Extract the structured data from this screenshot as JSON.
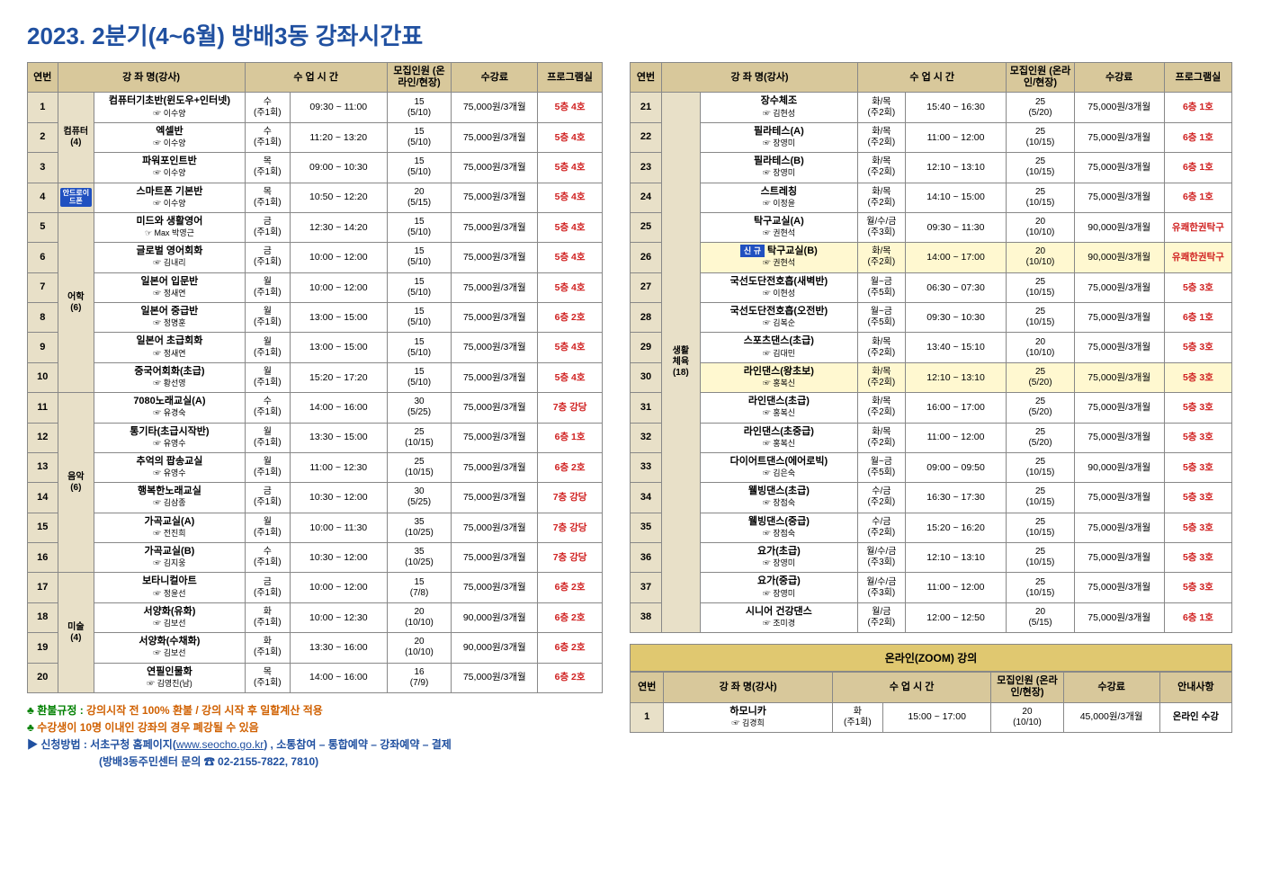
{
  "title": "2023. 2분기(4~6월) 방배3동 강좌시간표",
  "headers": [
    "연번",
    "강 좌 명(강사)",
    "수 업 시 간",
    "모집인원 (온라인/현장)",
    "수강료",
    "프로그램실"
  ],
  "left_rows": [
    {
      "n": "1",
      "cat": "컴퓨터 (4)",
      "cat_span": 3,
      "badge": "",
      "name": "컴퓨터기초반(윈도우+인터넷)",
      "teacher": "☞ 이수양",
      "day": "수",
      "per": "(주1회)",
      "time": "09:30 ~ 11:00",
      "cap": "15",
      "capd": "(5/10)",
      "fee": "75,000원/3개월",
      "room": "5층 4호",
      "rc": "r"
    },
    {
      "n": "2",
      "name": "엑셀반",
      "teacher": "☞ 이수양",
      "day": "수",
      "per": "(주1회)",
      "time": "11:20 ~ 13:20",
      "cap": "15",
      "capd": "(5/10)",
      "fee": "75,000원/3개월",
      "room": "5층 4호",
      "rc": "r"
    },
    {
      "n": "3",
      "name": "파워포인트반",
      "teacher": "☞ 이수양",
      "day": "목",
      "per": "(주1회)",
      "time": "09:00 ~ 10:30",
      "cap": "15",
      "capd": "(5/10)",
      "fee": "75,000원/3개월",
      "room": "5층 4호",
      "rc": "r"
    },
    {
      "n": "4",
      "cat": "",
      "cat_span": 1,
      "badge": "안드로이드폰",
      "name": "스마트폰 기본반",
      "teacher": "☞ 이수양",
      "day": "목",
      "per": "(주1회)",
      "time": "10:50 ~ 12:20",
      "cap": "20",
      "capd": "(5/15)",
      "fee": "75,000원/3개월",
      "room": "5층 4호",
      "rc": "r"
    },
    {
      "n": "5",
      "cat": "어학 (6)",
      "cat_span": 6,
      "name": "미드와 생활영어",
      "teacher": "☞ Max 박영근",
      "day": "금",
      "per": "(주1회)",
      "time": "12:30 ~ 14:20",
      "cap": "15",
      "capd": "(5/10)",
      "fee": "75,000원/3개월",
      "room": "5층 4호",
      "rc": "r"
    },
    {
      "n": "6",
      "name": "글로벌 영어회화",
      "teacher": "☞ 김내리",
      "day": "금",
      "per": "(주1회)",
      "time": "10:00 ~ 12:00",
      "cap": "15",
      "capd": "(5/10)",
      "fee": "75,000원/3개월",
      "room": "5층 4호",
      "rc": "r"
    },
    {
      "n": "7",
      "name": "일본어 입문반",
      "teacher": "☞ 정새연",
      "day": "월",
      "per": "(주1회)",
      "time": "10:00 ~ 12:00",
      "cap": "15",
      "capd": "(5/10)",
      "fee": "75,000원/3개월",
      "room": "5층 4호",
      "rc": "r"
    },
    {
      "n": "8",
      "name": "일본어 중급반",
      "teacher": "☞ 정명훈",
      "day": "월",
      "per": "(주1회)",
      "time": "13:00 ~ 15:00",
      "cap": "15",
      "capd": "(5/10)",
      "fee": "75,000원/3개월",
      "room": "6층 2호",
      "rc": "r"
    },
    {
      "n": "9",
      "name": "일본어 초급회화",
      "teacher": "☞ 정새연",
      "day": "월",
      "per": "(주1회)",
      "time": "13:00 ~ 15:00",
      "cap": "15",
      "capd": "(5/10)",
      "fee": "75,000원/3개월",
      "room": "5층 4호",
      "rc": "r"
    },
    {
      "n": "10",
      "name": "중국어회화(초급)",
      "teacher": "☞ 황선영",
      "day": "월",
      "per": "(주1회)",
      "time": "15:20 ~ 17:20",
      "cap": "15",
      "capd": "(5/10)",
      "fee": "75,000원/3개월",
      "room": "5층 4호",
      "rc": "r"
    },
    {
      "n": "11",
      "cat": "음악 (6)",
      "cat_span": 6,
      "name": "7080노래교실(A)",
      "teacher": "☞ 유경숙",
      "day": "수",
      "per": "(주1회)",
      "time": "14:00 ~ 16:00",
      "cap": "30",
      "capd": "(5/25)",
      "fee": "75,000원/3개월",
      "room": "7층 강당",
      "rc": "r"
    },
    {
      "n": "12",
      "name": "통기타(초급시작반)",
      "teacher": "☞ 유영수",
      "day": "월",
      "per": "(주1회)",
      "time": "13:30 ~ 15:00",
      "cap": "25",
      "capd": "(10/15)",
      "fee": "75,000원/3개월",
      "room": "6층 1호",
      "rc": "r"
    },
    {
      "n": "13",
      "name": "추억의 팝송교실",
      "teacher": "☞ 유영수",
      "day": "월",
      "per": "(주1회)",
      "time": "11:00 ~ 12:30",
      "cap": "25",
      "capd": "(10/15)",
      "fee": "75,000원/3개월",
      "room": "6층 2호",
      "rc": "r"
    },
    {
      "n": "14",
      "name": "행복한노래교실",
      "teacher": "☞ 김삼종",
      "day": "금",
      "per": "(주1회)",
      "time": "10:30 ~ 12:00",
      "cap": "30",
      "capd": "(5/25)",
      "fee": "75,000원/3개월",
      "room": "7층 강당",
      "rc": "r"
    },
    {
      "n": "15",
      "name": "가곡교실(A)",
      "teacher": "☞ 전진희",
      "day": "월",
      "per": "(주1회)",
      "time": "10:00 ~ 11:30",
      "cap": "35",
      "capd": "(10/25)",
      "fee": "75,000원/3개월",
      "room": "7층 강당",
      "rc": "r"
    },
    {
      "n": "16",
      "name": "가곡교실(B)",
      "teacher": "☞ 김지웅",
      "day": "수",
      "per": "(주1회)",
      "time": "10:30 ~ 12:00",
      "cap": "35",
      "capd": "(10/25)",
      "fee": "75,000원/3개월",
      "room": "7층 강당",
      "rc": "r"
    },
    {
      "n": "17",
      "cat": "미술 (4)",
      "cat_span": 4,
      "name": "보타니컬아트",
      "teacher": "☞ 정윤선",
      "day": "금",
      "per": "(주1회)",
      "time": "10:00 ~ 12:00",
      "cap": "15",
      "capd": "(7/8)",
      "fee": "75,000원/3개월",
      "room": "6층 2호",
      "rc": "r"
    },
    {
      "n": "18",
      "name": "서양화(유화)",
      "teacher": "☞ 김보선",
      "day": "화",
      "per": "(주1회)",
      "time": "10:00 ~ 12:30",
      "cap": "20",
      "capd": "(10/10)",
      "fee": "90,000원/3개월",
      "room": "6층 2호",
      "rc": "r"
    },
    {
      "n": "19",
      "name": "서양화(수채화)",
      "teacher": "☞ 김보선",
      "day": "화",
      "per": "(주1회)",
      "time": "13:30 ~ 16:00",
      "cap": "20",
      "capd": "(10/10)",
      "fee": "90,000원/3개월",
      "room": "6층 2호",
      "rc": "r"
    },
    {
      "n": "20",
      "name": "연필인물화",
      "teacher": "☞ 김영진(남)",
      "day": "목",
      "per": "(주1회)",
      "time": "14:00 ~ 16:00",
      "cap": "16",
      "capd": "(7/9)",
      "fee": "75,000원/3개월",
      "room": "6층 2호",
      "rc": "r"
    }
  ],
  "right_rows": [
    {
      "n": "21",
      "cat": "생활 체육 (18)",
      "cat_span": 18,
      "name": "장수체조",
      "teacher": "☞ 김현성",
      "day": "화/목",
      "per": "(주2회)",
      "time": "15:40 ~ 16:30",
      "cap": "25",
      "capd": "(5/20)",
      "fee": "75,000원/3개월",
      "room": "6층 1호",
      "rc": "r"
    },
    {
      "n": "22",
      "name": "필라테스(A)",
      "teacher": "☞ 장영미",
      "day": "화/목",
      "per": "(주2회)",
      "time": "11:00 ~ 12:00",
      "cap": "25",
      "capd": "(10/15)",
      "fee": "75,000원/3개월",
      "room": "6층 1호",
      "rc": "r"
    },
    {
      "n": "23",
      "name": "필라테스(B)",
      "teacher": "☞ 장영미",
      "day": "화/목",
      "per": "(주2회)",
      "time": "12:10 ~ 13:10",
      "cap": "25",
      "capd": "(10/15)",
      "fee": "75,000원/3개월",
      "room": "6층 1호",
      "rc": "r"
    },
    {
      "n": "24",
      "name": "스트레칭",
      "teacher": "☞ 이정윤",
      "day": "화/목",
      "per": "(주2회)",
      "time": "14:10 ~ 15:00",
      "cap": "25",
      "capd": "(10/15)",
      "fee": "75,000원/3개월",
      "room": "6층 1호",
      "rc": "r"
    },
    {
      "n": "25",
      "name": "탁구교실(A)",
      "teacher": "☞ 권현석",
      "day": "월/수/금",
      "per": "(주3회)",
      "time": "09:30 ~ 11:30",
      "cap": "20",
      "capd": "(10/10)",
      "fee": "90,000원/3개월",
      "room": "유쾌한권탁구",
      "rc": "r"
    },
    {
      "n": "26",
      "badge": "신 규",
      "name": "탁구교실(B)",
      "teacher": "☞ 권현석",
      "day": "화/목",
      "per": "(주2회)",
      "time": "14:00 ~ 17:00",
      "cap": "20",
      "capd": "(10/10)",
      "fee": "90,000원/3개월",
      "room": "유쾌한권탁구",
      "rc": "r",
      "hl": true
    },
    {
      "n": "27",
      "name": "국선도단전호흡(새벽반)",
      "teacher": "☞ 이현성",
      "day": "월~금",
      "per": "(주5회)",
      "time": "06:30 ~ 07:30",
      "cap": "25",
      "capd": "(10/15)",
      "fee": "75,000원/3개월",
      "room": "5층 3호",
      "rc": "r"
    },
    {
      "n": "28",
      "name": "국선도단전호흡(오전반)",
      "teacher": "☞ 김복순",
      "day": "월~금",
      "per": "(주5회)",
      "time": "09:30 ~ 10:30",
      "cap": "25",
      "capd": "(10/15)",
      "fee": "75,000원/3개월",
      "room": "6층 1호",
      "rc": "r"
    },
    {
      "n": "29",
      "name": "스포츠댄스(초급)",
      "teacher": "☞ 김대민",
      "day": "화/목",
      "per": "(주2회)",
      "time": "13:40 ~ 15:10",
      "cap": "20",
      "capd": "(10/10)",
      "fee": "75,000원/3개월",
      "room": "5층 3호",
      "rc": "r"
    },
    {
      "n": "30",
      "name": "라인댄스(왕초보)",
      "teacher": "☞ 홍복신",
      "day": "화/목",
      "per": "(주2회)",
      "time": "12:10 ~ 13:10",
      "cap": "25",
      "capd": "(5/20)",
      "fee": "75,000원/3개월",
      "room": "5층 3호",
      "rc": "r",
      "hl": true
    },
    {
      "n": "31",
      "name": "라인댄스(초급)",
      "teacher": "☞ 홍복신",
      "day": "화/목",
      "per": "(주2회)",
      "time": "16:00 ~ 17:00",
      "cap": "25",
      "capd": "(5/20)",
      "fee": "75,000원/3개월",
      "room": "5층 3호",
      "rc": "r"
    },
    {
      "n": "32",
      "name": "라인댄스(초중급)",
      "teacher": "☞ 홍복신",
      "day": "화/목",
      "per": "(주2회)",
      "time": "11:00 ~ 12:00",
      "cap": "25",
      "capd": "(5/20)",
      "fee": "75,000원/3개월",
      "room": "5층 3호",
      "rc": "r"
    },
    {
      "n": "33",
      "name": "다이어트댄스(에어로빅)",
      "teacher": "☞ 김은숙",
      "day": "월~금",
      "per": "(주5회)",
      "time": "09:00 ~ 09:50",
      "cap": "25",
      "capd": "(10/15)",
      "fee": "90,000원/3개월",
      "room": "5층 3호",
      "rc": "r"
    },
    {
      "n": "34",
      "name": "웰빙댄스(초급)",
      "teacher": "☞ 장점숙",
      "day": "수/금",
      "per": "(주2회)",
      "time": "16:30 ~ 17:30",
      "cap": "25",
      "capd": "(10/15)",
      "fee": "75,000원/3개월",
      "room": "5층 3호",
      "rc": "r"
    },
    {
      "n": "35",
      "name": "웰빙댄스(중급)",
      "teacher": "☞ 장점숙",
      "day": "수/금",
      "per": "(주2회)",
      "time": "15:20 ~ 16:20",
      "cap": "25",
      "capd": "(10/15)",
      "fee": "75,000원/3개월",
      "room": "5층 3호",
      "rc": "r"
    },
    {
      "n": "36",
      "name": "요가(초급)",
      "teacher": "☞ 장영미",
      "day": "월/수/금",
      "per": "(주3회)",
      "time": "12:10 ~ 13:10",
      "cap": "25",
      "capd": "(10/15)",
      "fee": "75,000원/3개월",
      "room": "5층 3호",
      "rc": "r"
    },
    {
      "n": "37",
      "name": "요가(중급)",
      "teacher": "☞ 장영미",
      "day": "월/수/금",
      "per": "(주3회)",
      "time": "11:00 ~ 12:00",
      "cap": "25",
      "capd": "(10/15)",
      "fee": "75,000원/3개월",
      "room": "5층 3호",
      "rc": "r"
    },
    {
      "n": "38",
      "name": "시니어 건강댄스",
      "teacher": "☞ 조미경",
      "day": "월/금",
      "per": "(주2회)",
      "time": "12:00 ~ 12:50",
      "cap": "20",
      "capd": "(5/15)",
      "fee": "75,000원/3개월",
      "room": "6층 1호",
      "rc": "r"
    }
  ],
  "zoom_title": "온라인(ZOOM) 강의",
  "zoom_headers": [
    "연번",
    "강 좌 명(강사)",
    "수 업 시 간",
    "모집인원 (온라인/현장)",
    "수강료",
    "안내사항"
  ],
  "zoom_rows": [
    {
      "n": "1",
      "name": "하모니카",
      "teacher": "☞ 김경희",
      "day": "화",
      "per": "(주1회)",
      "time": "15:00 ~ 17:00",
      "cap": "20",
      "capd": "(10/10)",
      "fee": "45,000원/3개월",
      "room": "온라인 수강",
      "rc": "b"
    }
  ],
  "notes": {
    "l1a": "♣ 환불규정 : ",
    "l1b": "강의시작 전 100% 환불 / 강의 시작 후 일할계산 적용",
    "l2a": "♣ ",
    "l2b": "수강생이 10명 이내인 강좌의 경우 폐강될 수 있음",
    "l3a": "▶ 신청방법 : 서초구청 홈페이지(",
    "l3b": "www.seocho.go.kr",
    "l3c": ") , 소통참여 – 통합예약 – 강좌예약 – 결제",
    "l4": "(방배3동주민센터 문의 ☎ 02-2155-7822, 7810)"
  }
}
